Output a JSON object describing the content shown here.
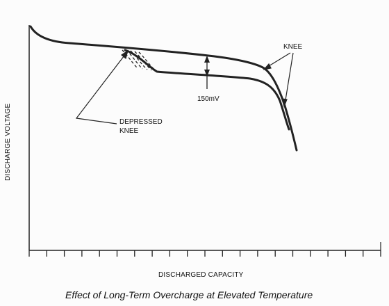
{
  "chart_data": {
    "type": "line",
    "title": "Effect of Long-Term Overcharge at Elevated Temperature",
    "xlabel": "DISCHARGED CAPACITY",
    "ylabel": "DISCHARGE VOLTAGE",
    "x_tick_labels": [],
    "y_tick_labels": [],
    "grid": false,
    "annotations": {
      "knee": "KNEE",
      "depressed_knee_line1": "DEPRESSED",
      "depressed_knee_line2": "KNEE",
      "voltage_drop": "150mV"
    },
    "colors": {
      "curve": "#222222",
      "axis": "#222222",
      "text": "#111111"
    }
  }
}
